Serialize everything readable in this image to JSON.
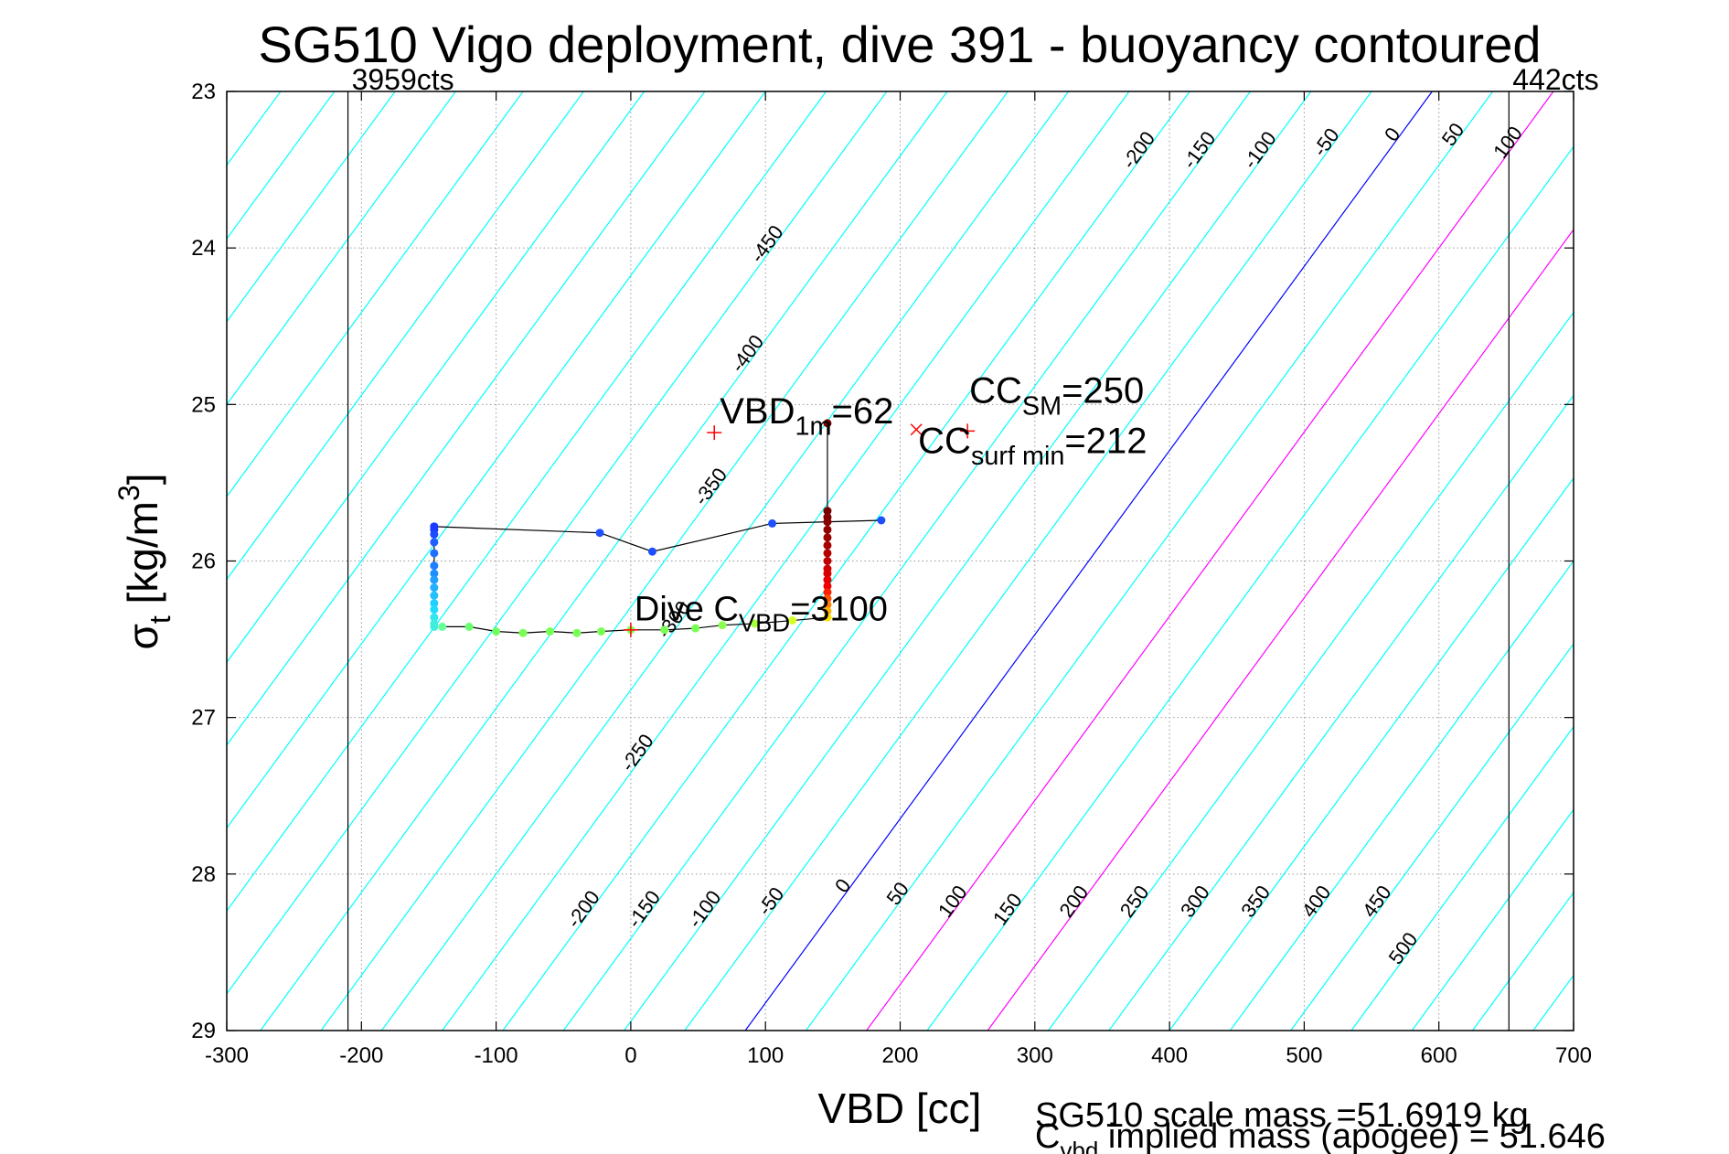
{
  "chart_data": {
    "type": "scatter",
    "title": "SG510 Vigo deployment, dive 391 - buoyancy contoured",
    "xlabel": "VBD [cc]",
    "ylabel": {
      "main": "σ",
      "sub": "t",
      "units_pre": " [kg/m",
      "units_sup": "3",
      "units_post": "]"
    },
    "xlim": [
      -300,
      700
    ],
    "ylim": [
      23,
      29
    ],
    "y_reversed": true,
    "grid": true,
    "xticks": [
      -300,
      -200,
      -100,
      0,
      100,
      200,
      300,
      400,
      500,
      600,
      700
    ],
    "yticks": [
      23,
      24,
      25,
      26,
      27,
      28,
      29
    ],
    "limits": [
      {
        "x": -210,
        "label": "3959cts"
      },
      {
        "x": 652,
        "label": "442cts"
      }
    ],
    "contours": {
      "levels": [
        -450,
        -400,
        -350,
        -300,
        -250,
        -200,
        -150,
        -100,
        -50,
        0,
        50,
        100,
        150,
        200,
        250,
        300,
        350,
        400,
        450,
        500
      ],
      "label_levels": [
        -450,
        -400,
        -350,
        -300,
        -250,
        -200,
        -150,
        -100,
        -50,
        0,
        50,
        100,
        150,
        200,
        250,
        300,
        350,
        400,
        450,
        500
      ],
      "zero_color": "#0000ff",
      "highlight_levels": [
        100,
        200
      ],
      "highlight_color": "#ff00ff",
      "color": "#00ffff",
      "anchor_vbd_at_29": [
        -770,
        -730,
        -685,
        -640,
        -590,
        -545,
        -500,
        -455,
        -410,
        -365,
        -320,
        -275,
        -230,
        -185,
        -140,
        -95,
        -50,
        -5,
        40,
        85,
        130,
        175,
        220,
        265,
        310,
        355,
        400,
        445,
        490,
        535,
        580,
        625,
        670,
        715,
        760
      ],
      "anchor_levels_at_29": [
        -950,
        -900,
        -850,
        -800,
        -750,
        -700,
        -650,
        -600,
        -550,
        -500,
        -450,
        -400,
        -350,
        -300,
        -250,
        -200,
        -150,
        -100,
        -50,
        0,
        50,
        100,
        150,
        200,
        250,
        300,
        350,
        400,
        450,
        500,
        550,
        600,
        650,
        700,
        750
      ],
      "slope_vbd_per_sigma": -85
    },
    "dive_track": {
      "down": [
        [
          -146,
          25.78
        ],
        [
          -146,
          25.8
        ],
        [
          -146,
          25.83
        ],
        [
          -146,
          25.88
        ],
        [
          -146,
          25.95
        ],
        [
          -146,
          26.03
        ],
        [
          -146,
          26.08
        ],
        [
          -146,
          26.12
        ],
        [
          -146,
          26.17
        ],
        [
          -146,
          26.22
        ],
        [
          -146,
          26.27
        ],
        [
          -146,
          26.31
        ],
        [
          -146,
          26.36
        ],
        [
          -146,
          26.4
        ],
        [
          -146,
          26.42
        ]
      ],
      "bottom": [
        [
          -140,
          26.42
        ],
        [
          -120,
          26.42
        ],
        [
          -100,
          26.45
        ],
        [
          -80,
          26.46
        ],
        [
          -60,
          26.45
        ],
        [
          -40,
          26.46
        ],
        [
          -22,
          26.45
        ],
        [
          0,
          26.44
        ],
        [
          25,
          26.44
        ],
        [
          48,
          26.43
        ],
        [
          68,
          26.41
        ],
        [
          92,
          26.4
        ],
        [
          120,
          26.38
        ],
        [
          146,
          26.36
        ]
      ],
      "up": [
        [
          146,
          25.12
        ],
        [
          146,
          25.68
        ],
        [
          146,
          25.72
        ],
        [
          146,
          25.75
        ],
        [
          146,
          25.8
        ],
        [
          146,
          25.85
        ],
        [
          146,
          25.9
        ],
        [
          146,
          25.95
        ],
        [
          146,
          26.0
        ],
        [
          146,
          26.05
        ],
        [
          146,
          26.08
        ],
        [
          146,
          26.12
        ],
        [
          146,
          26.16
        ],
        [
          146,
          26.2
        ],
        [
          146,
          26.24
        ],
        [
          146,
          26.28
        ],
        [
          146,
          26.32
        ],
        [
          146,
          26.36
        ]
      ],
      "surface": [
        [
          -146,
          25.78
        ],
        [
          -23,
          25.82
        ],
        [
          16,
          25.94
        ],
        [
          105,
          25.76
        ],
        [
          186,
          25.74
        ]
      ],
      "colors": {
        "down": [
          "#1a3cff",
          "#1a3cff",
          "#1d4dff",
          "#2060ff",
          "#2070ff",
          "#1e7fff",
          "#1f8fff",
          "#22a0ff",
          "#24b0ff",
          "#24c0ff",
          "#22cfff",
          "#22dcff",
          "#30e6f0",
          "#40eee0",
          "#40eee0"
        ],
        "bottom": [
          "#66ff99",
          "#6aff70",
          "#70ff60",
          "#78ff55",
          "#78ff55",
          "#78ff55",
          "#78ff55",
          "#78ff55",
          "#78ff55",
          "#78ff55",
          "#8aff50",
          "#a6ff40",
          "#d6ff2a",
          "#fff000"
        ],
        "up": [
          "#7a0000",
          "#7a0000",
          "#7f0000",
          "#880000",
          "#910000",
          "#9c0000",
          "#a80000",
          "#b40000",
          "#c00000",
          "#cc0000",
          "#d80000",
          "#e40000",
          "#f00000",
          "#ff2000",
          "#ff5000",
          "#ff8000",
          "#ffb000",
          "#ffe000"
        ],
        "surface": [
          "#1a3cff",
          "#1e50ff",
          "#1e50ff",
          "#1e50ff",
          "#1e50ff"
        ]
      }
    },
    "annotations": [
      {
        "id": "vbd1m",
        "text": "VBD",
        "sub": "1m",
        "tail": "=62",
        "color": "#ff0000",
        "vbd": 62,
        "sigma": 25.18
      },
      {
        "id": "ccsm",
        "text": "CC",
        "sub": "SM",
        "tail": "=250",
        "color": "#ff0000",
        "vbd": 250,
        "sigma": 25.0
      },
      {
        "id": "ccsurf",
        "text": "CC",
        "sub": "surf min",
        "tail": "=212",
        "color": "#ff0000",
        "vbd": 212,
        "sigma": 25.17
      },
      {
        "id": "cvbd",
        "text": "Dive C",
        "sub": "VBD",
        "tail": "=3100",
        "color": "#000000",
        "vbd": 0,
        "sigma": 26.44
      }
    ],
    "footer": {
      "line1": "SG510 scale mass =51.6919 kg",
      "line2_pre": "C",
      "line2_sub": "vbd",
      "line2_post": " implied mass (apogee) = 51.646"
    }
  }
}
